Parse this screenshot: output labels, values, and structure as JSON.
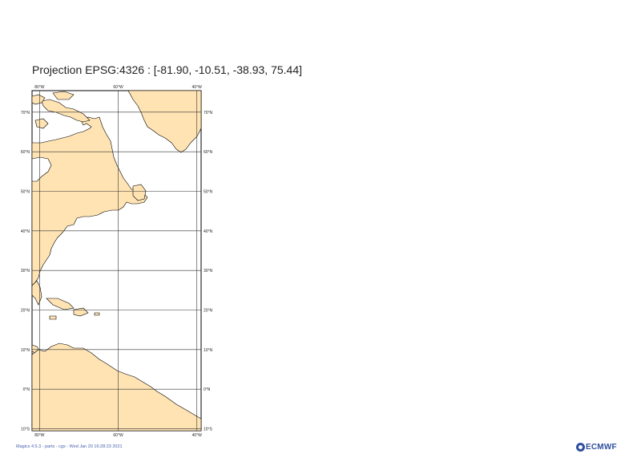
{
  "title": "Projection EPSG:4326 : [-81.90, -10.51, -38.93, 75.44]",
  "map": {
    "land_color": "#ffe3b3",
    "sea_color": "#ffffff",
    "coast_color": "#000000",
    "grid_color": "#333333",
    "lon_ticks": [
      {
        "value": -80,
        "label": "80°W"
      },
      {
        "value": -60,
        "label": "60°W"
      },
      {
        "value": -40,
        "label": "40°W"
      }
    ],
    "lat_ticks": [
      {
        "value": 70,
        "label": "70°N"
      },
      {
        "value": 60,
        "label": "60°N"
      },
      {
        "value": 50,
        "label": "50°N"
      },
      {
        "value": 40,
        "label": "40°N"
      },
      {
        "value": 30,
        "label": "30°N"
      },
      {
        "value": 20,
        "label": "20°N"
      },
      {
        "value": 10,
        "label": "10°N"
      },
      {
        "value": 0,
        "label": "0°N"
      },
      {
        "value": -10,
        "label": "10°S"
      }
    ]
  },
  "footer": "Magics 4.5.3 - parts - cgs - Wed Jan 20 16:28:23 2021",
  "logo": {
    "text": "ECMWF"
  }
}
